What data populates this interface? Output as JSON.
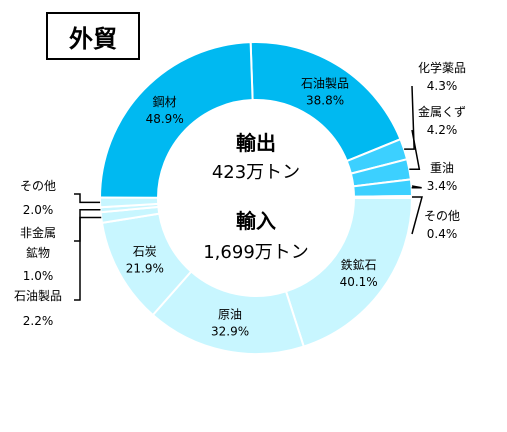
{
  "title": "外貿",
  "chart_data": {
    "type": "pie",
    "center": {
      "export_label": "輸出",
      "export_value": "423万トン",
      "import_label": "輸入",
      "import_value": "1,699万トン"
    },
    "series": [
      {
        "name": "輸出",
        "slices": [
          {
            "label": "石油製品",
            "value": 38.8,
            "display": "38.8%",
            "color": "#00B9F1"
          },
          {
            "label": "化学薬品",
            "value": 4.3,
            "display": "4.3%",
            "color": "#3CD0FF"
          },
          {
            "label": "金属くず",
            "value": 4.2,
            "display": "4.2%",
            "color": "#3CD0FF"
          },
          {
            "label": "重油",
            "value": 3.4,
            "display": "3.4%",
            "color": "#3CD0FF"
          },
          {
            "label": "その他",
            "value": 0.4,
            "display": "0.4%",
            "color": "#3CD0FF"
          },
          {
            "label": "鋼材",
            "value": 48.9,
            "display": "48.9%",
            "color": "#00B9F1"
          }
        ]
      },
      {
        "name": "輸入",
        "slices": [
          {
            "label": "鉄鉱石",
            "value": 40.1,
            "display": "40.1%",
            "color": "#C8F6FF"
          },
          {
            "label": "原油",
            "value": 32.9,
            "display": "32.9%",
            "color": "#C8F6FF"
          },
          {
            "label": "石炭",
            "value": 21.9,
            "display": "21.9%",
            "color": "#C8F6FF"
          },
          {
            "label": "石油製品",
            "value": 2.2,
            "display": "2.2%",
            "color": "#C8F6FF"
          },
          {
            "label": "非金属鉱物",
            "value": 1.0,
            "display": "1.0%",
            "color": "#C8F6FF"
          },
          {
            "label": "その他",
            "value": 2.0,
            "display": "2.0%",
            "color": "#C8F6FF"
          }
        ]
      }
    ]
  }
}
